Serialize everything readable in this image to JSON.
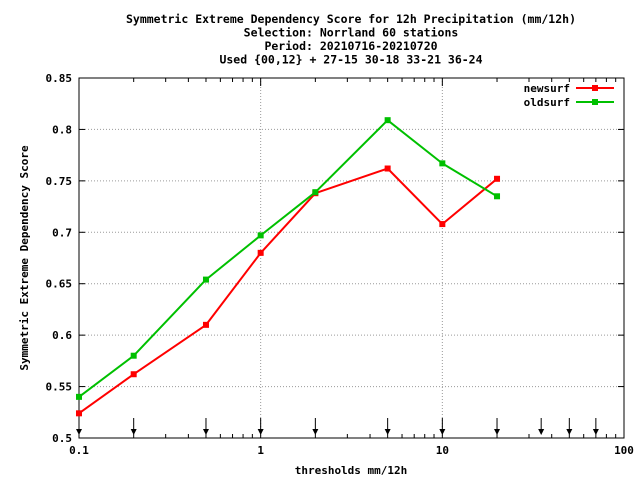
{
  "chart_data": {
    "type": "line",
    "title_lines": [
      "Symmetric Extreme Dependency Score  for 12h Precipitation (mm/12h)",
      "Selection: Norrland     60 stations",
      "Period: 20210716-20210720",
      "Used {00,12} + 27-15 30-18 33-21 36-24"
    ],
    "xlabel": "thresholds mm/12h",
    "ylabel": "Symmetric Extreme Dependency Score",
    "x_scale": "log",
    "xlim": [
      0.1,
      100
    ],
    "ylim": [
      0.5,
      0.85
    ],
    "x_ticks": [
      0.1,
      1,
      10,
      100
    ],
    "x_tick_labels": [
      "0.1",
      "1",
      "10",
      "100"
    ],
    "y_ticks": [
      0.5,
      0.55,
      0.6,
      0.65,
      0.7,
      0.75,
      0.8,
      0.85
    ],
    "y_tick_labels": [
      "0.5",
      "0.55",
      "0.6",
      "0.65",
      "0.7",
      "0.75",
      "0.8",
      "0.85"
    ],
    "grid": true,
    "legend_position": "top-right",
    "threshold_markers": [
      0.1,
      0.2,
      0.5,
      1,
      2,
      5,
      10,
      20,
      35,
      50,
      70
    ],
    "series": [
      {
        "name": "newsurf",
        "color": "#ff0000",
        "x": [
          0.1,
          0.2,
          0.5,
          1,
          2,
          5,
          10,
          20
        ],
        "values": [
          0.524,
          0.562,
          0.61,
          0.68,
          0.738,
          0.762,
          0.708,
          0.752
        ]
      },
      {
        "name": "oldsurf",
        "color": "#00c000",
        "x": [
          0.1,
          0.2,
          0.5,
          1,
          2,
          5,
          10,
          20
        ],
        "values": [
          0.54,
          0.58,
          0.654,
          0.697,
          0.739,
          0.809,
          0.767,
          0.735
        ]
      }
    ]
  }
}
